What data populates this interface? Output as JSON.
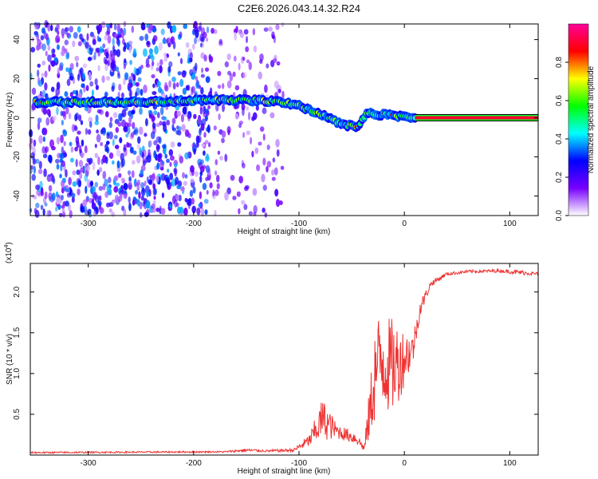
{
  "title": "C2E6.2026.043.14.32.R24",
  "chart_data": [
    {
      "type": "heatmap",
      "name": "spectrogram",
      "xlabel": "Height of straight line (km)",
      "ylabel": "Frequency (Hz)",
      "xlim": [
        -355,
        127
      ],
      "ylim": [
        -50,
        48
      ],
      "xticks": [
        -300,
        -200,
        -100,
        0,
        100
      ],
      "yticks": [
        -40,
        -20,
        0,
        20,
        40
      ],
      "xtick_labels": [
        "-300",
        "-200",
        "-100",
        "0",
        "100"
      ],
      "ytick_labels": [
        "-40",
        "-20",
        "0",
        "20",
        "40"
      ],
      "ridge": {
        "x": [
          -350,
          -300,
          -260,
          -220,
          -180,
          -150,
          -120,
          -100,
          -80,
          -60,
          -45,
          -35,
          -30,
          -20,
          -10,
          0,
          10,
          127
        ],
        "y": [
          8,
          8,
          8,
          8.5,
          9,
          9,
          8.5,
          6,
          2,
          -3,
          -5,
          3,
          2,
          1.5,
          1,
          0.5,
          0,
          0
        ]
      },
      "colorbar": {
        "label": "Normalized spectral amplitude",
        "range": [
          0.0,
          1.0
        ],
        "ticks": [
          0.0,
          0.2,
          0.4,
          0.6,
          0.8
        ],
        "tick_labels": [
          "0.0",
          "0.2",
          "0.4",
          "0.6",
          "0.8"
        ],
        "colors": [
          "#ffffff",
          "#7700ff",
          "#0000ff",
          "#00ffff",
          "#00ff00",
          "#ffff00",
          "#ff0000",
          "#ff0099"
        ]
      }
    },
    {
      "type": "line",
      "name": "snr",
      "xlabel": "Height of straight line (km)",
      "ylabel": "SNR (10 * v/v)",
      "multiplier": "(x10",
      "multiplier_exp": "4",
      "multiplier_close": ")",
      "xlim": [
        -355,
        127
      ],
      "ylim": [
        0,
        2.35
      ],
      "xticks": [
        -300,
        -200,
        -100,
        0,
        100
      ],
      "yticks": [
        0.5,
        1.0,
        1.5,
        2.0
      ],
      "xtick_labels": [
        "-300",
        "-200",
        "-100",
        "0",
        "100"
      ],
      "ytick_labels": [
        "0.5",
        "1.0",
        "1.5",
        "2.0"
      ],
      "color": "#ee3333",
      "envelope": {
        "x": [
          -355,
          -170,
          -150,
          -130,
          -105,
          -90,
          -82,
          -78,
          -72,
          -65,
          -55,
          -45,
          -38,
          -32,
          -28,
          -22,
          -15,
          -8,
          0,
          8,
          15,
          25,
          40,
          60,
          90,
          110,
          127
        ],
        "mean": [
          0.03,
          0.04,
          0.06,
          0.05,
          0.06,
          0.18,
          0.35,
          0.45,
          0.38,
          0.3,
          0.25,
          0.2,
          0.08,
          0.6,
          1.0,
          1.2,
          1.1,
          1.1,
          1.2,
          1.3,
          1.8,
          2.1,
          2.22,
          2.25,
          2.26,
          2.24,
          2.22
        ],
        "noise": [
          0.01,
          0.01,
          0.02,
          0.015,
          0.02,
          0.08,
          0.2,
          0.25,
          0.2,
          0.1,
          0.08,
          0.08,
          0.04,
          0.4,
          0.6,
          0.65,
          0.6,
          0.55,
          0.35,
          0.2,
          0.1,
          0.04,
          0.02,
          0.02,
          0.02,
          0.03,
          0.02
        ]
      }
    }
  ]
}
